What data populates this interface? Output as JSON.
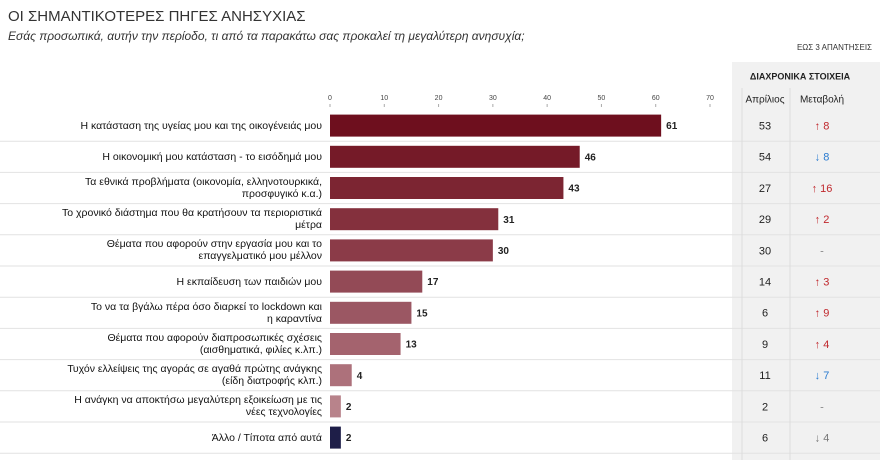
{
  "chart_data": {
    "type": "bar",
    "title": "ΟΙ ΣΗΜΑΝΤΙΚΟΤΕΡΕΣ ΠΗΓΕΣ ΑΝΗΣΥΧΙΑΣ",
    "subtitle": "Εσάς προσωπικά, αυτήν την περίοδο, τι από τα παρακάτω σας προκαλεί τη μεγαλύτερη ανησυχία;",
    "note": "ΕΩΣ 3 ΑΠΑΝΤΗΣΕΙΣ",
    "categories": [
      "Η κατάσταση της υγείας μου και της οικογένειάς μου",
      "Η οικονομική μου κατάσταση - το εισόδημά μου",
      "Τα εθνικά προβλήματα (οικονομία, ελληνοτουρκικά,\nπροσφυγικό κ.α.)",
      "Το χρονικό διάστημα που θα κρατήσουν τα περιοριστικά\nμέτρα",
      "Θέματα που αφορούν στην εργασία μου και το\nεπαγγελματικό μου μέλλον",
      "Η εκπαίδευση των παιδιών μου",
      "Το να τα βγάλω πέρα όσο διαρκεί το lockdown και\nη καραντίνα",
      "Θέματα που αφορούν διαπροσωπικές σχέσεις\n(αισθηματικά, φιλίες κ.λπ.)",
      "Τυχόν ελλείψεις της αγοράς σε αγαθά πρώτης ανάγκης\n(είδη διατροφής κλπ.)",
      "Η ανάγκη να αποκτήσω μεγαλύτερη εξοικείωση με τις\nνέες τεχνολογίες",
      "Άλλο / Τίποτα από αυτά"
    ],
    "values": [
      61,
      46,
      43,
      31,
      30,
      17,
      15,
      13,
      4,
      2,
      2
    ],
    "colors": [
      "#6e0f1e",
      "#751a28",
      "#7c2532",
      "#84303d",
      "#8b3b48",
      "#934a56",
      "#9b5763",
      "#a4636e",
      "#ad717b",
      "#b8838b",
      "#1e1e48"
    ],
    "xlim": [
      0,
      70
    ],
    "xticks": [
      0,
      10,
      20,
      30,
      40,
      50,
      60,
      70
    ],
    "table": {
      "title": "ΔΙΑΧΡΟΝΙΚΑ ΣΤΟΙΧΕΙΑ",
      "columns": [
        "Απρίλιος",
        "Μεταβολή"
      ],
      "april": [
        53,
        54,
        27,
        29,
        30,
        14,
        6,
        9,
        11,
        2,
        6
      ],
      "change": [
        "↑ 8",
        "↓ 8",
        "↑ 16",
        "↑ 2",
        "-",
        "↑ 3",
        "↑ 9",
        "↑ 4",
        "↓ 7",
        "-",
        "↓ 4"
      ]
    }
  }
}
